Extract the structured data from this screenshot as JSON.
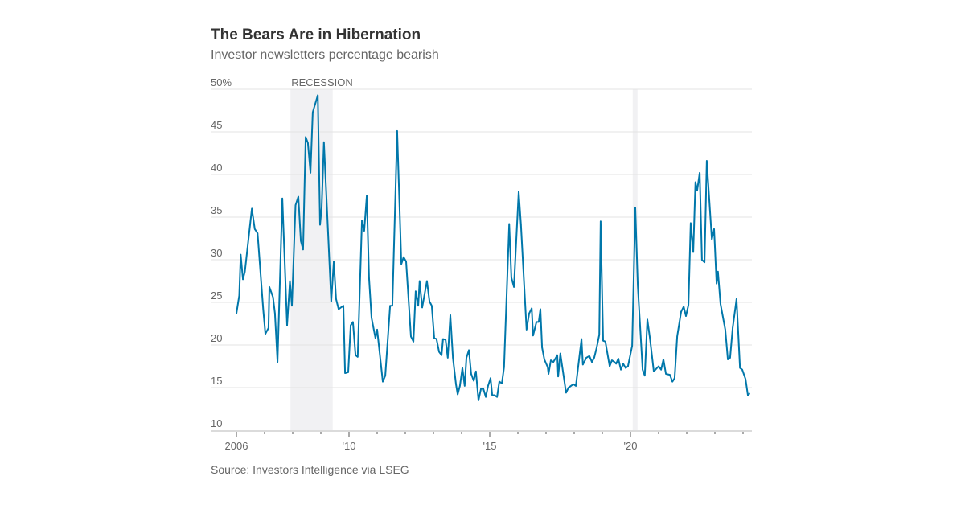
{
  "chart_data": {
    "type": "line",
    "title": "The Bears Are in Hibernation",
    "subtitle": "Investor newsletters percentage bearish",
    "source": "Source: Investors Intelligence via LSEG",
    "ylim": [
      10,
      50
    ],
    "yticks": [
      {
        "value": 10,
        "label": "10"
      },
      {
        "value": 15,
        "label": "15"
      },
      {
        "value": 20,
        "label": "20"
      },
      {
        "value": 25,
        "label": "25"
      },
      {
        "value": 30,
        "label": "30"
      },
      {
        "value": 35,
        "label": "35"
      },
      {
        "value": 40,
        "label": "40"
      },
      {
        "value": 45,
        "label": "45"
      },
      {
        "value": 50,
        "label": "50%"
      }
    ],
    "xlim": [
      2006,
      2024.3
    ],
    "xticks": [
      {
        "value": 2006,
        "label": "2006"
      },
      {
        "value": 2010,
        "label": "'10"
      },
      {
        "value": 2015,
        "label": "'15"
      },
      {
        "value": 2020,
        "label": "'20"
      }
    ],
    "grid": true,
    "line_color": "#0077aa",
    "recessions": [
      {
        "start": 2007.92,
        "end": 2009.42,
        "label": "RECESSION"
      },
      {
        "start": 2020.08,
        "end": 2020.25,
        "label": ""
      }
    ],
    "series": [
      {
        "points": [
          [
            2006.0,
            23.7
          ],
          [
            2006.1,
            25.8
          ],
          [
            2006.15,
            30.6
          ],
          [
            2006.23,
            27.7
          ],
          [
            2006.3,
            28.6
          ],
          [
            2006.55,
            36.0
          ],
          [
            2006.65,
            33.6
          ],
          [
            2006.75,
            33.1
          ],
          [
            2006.95,
            24.2
          ],
          [
            2007.03,
            21.3
          ],
          [
            2007.14,
            22.0
          ],
          [
            2007.17,
            26.8
          ],
          [
            2007.3,
            25.6
          ],
          [
            2007.37,
            23.7
          ],
          [
            2007.46,
            18.0
          ],
          [
            2007.63,
            37.2
          ],
          [
            2007.8,
            22.3
          ],
          [
            2007.9,
            27.5
          ],
          [
            2007.97,
            24.6
          ],
          [
            2008.1,
            36.4
          ],
          [
            2008.2,
            37.4
          ],
          [
            2008.29,
            32.2
          ],
          [
            2008.37,
            31.2
          ],
          [
            2008.46,
            44.4
          ],
          [
            2008.54,
            43.7
          ],
          [
            2008.63,
            40.2
          ],
          [
            2008.71,
            47.3
          ],
          [
            2008.89,
            49.3
          ],
          [
            2008.97,
            34.1
          ],
          [
            2009.03,
            36.1
          ],
          [
            2009.11,
            43.8
          ],
          [
            2009.37,
            25.1
          ],
          [
            2009.46,
            29.8
          ],
          [
            2009.54,
            25.4
          ],
          [
            2009.63,
            24.2
          ],
          [
            2009.8,
            24.6
          ],
          [
            2009.86,
            16.7
          ],
          [
            2009.97,
            16.8
          ],
          [
            2010.06,
            22.3
          ],
          [
            2010.14,
            22.7
          ],
          [
            2010.23,
            18.8
          ],
          [
            2010.31,
            18.6
          ],
          [
            2010.46,
            34.6
          ],
          [
            2010.54,
            33.4
          ],
          [
            2010.63,
            37.5
          ],
          [
            2010.71,
            27.9
          ],
          [
            2010.8,
            23.2
          ],
          [
            2010.94,
            20.8
          ],
          [
            2011.0,
            21.8
          ],
          [
            2011.2,
            15.7
          ],
          [
            2011.29,
            16.4
          ],
          [
            2011.46,
            24.6
          ],
          [
            2011.54,
            24.6
          ],
          [
            2011.71,
            45.1
          ],
          [
            2011.86,
            29.5
          ],
          [
            2011.94,
            30.3
          ],
          [
            2012.03,
            29.8
          ],
          [
            2012.2,
            21.0
          ],
          [
            2012.29,
            20.4
          ],
          [
            2012.37,
            26.3
          ],
          [
            2012.46,
            24.6
          ],
          [
            2012.51,
            27.5
          ],
          [
            2012.6,
            24.4
          ],
          [
            2012.77,
            27.5
          ],
          [
            2012.86,
            25.1
          ],
          [
            2012.94,
            24.6
          ],
          [
            2013.03,
            20.8
          ],
          [
            2013.11,
            20.7
          ],
          [
            2013.2,
            19.2
          ],
          [
            2013.29,
            18.8
          ],
          [
            2013.34,
            20.7
          ],
          [
            2013.43,
            20.6
          ],
          [
            2013.51,
            18.5
          ],
          [
            2013.6,
            23.5
          ],
          [
            2013.69,
            18.5
          ],
          [
            2013.8,
            15.4
          ],
          [
            2013.86,
            14.2
          ],
          [
            2013.94,
            15.2
          ],
          [
            2014.03,
            17.3
          ],
          [
            2014.11,
            15.2
          ],
          [
            2014.17,
            18.5
          ],
          [
            2014.26,
            19.4
          ],
          [
            2014.34,
            16.6
          ],
          [
            2014.43,
            15.8
          ],
          [
            2014.51,
            16.9
          ],
          [
            2014.6,
            13.5
          ],
          [
            2014.69,
            14.9
          ],
          [
            2014.77,
            14.9
          ],
          [
            2014.86,
            13.9
          ],
          [
            2014.94,
            15.2
          ],
          [
            2015.03,
            16.1
          ],
          [
            2015.09,
            14.1
          ],
          [
            2015.17,
            14.1
          ],
          [
            2015.26,
            13.9
          ],
          [
            2015.34,
            15.7
          ],
          [
            2015.43,
            15.5
          ],
          [
            2015.51,
            17.4
          ],
          [
            2015.69,
            34.2
          ],
          [
            2015.77,
            27.9
          ],
          [
            2015.86,
            26.8
          ],
          [
            2016.03,
            38.0
          ],
          [
            2016.11,
            34.1
          ],
          [
            2016.31,
            21.8
          ],
          [
            2016.4,
            23.7
          ],
          [
            2016.49,
            24.3
          ],
          [
            2016.54,
            21.1
          ],
          [
            2016.66,
            22.7
          ],
          [
            2016.74,
            22.7
          ],
          [
            2016.8,
            24.2
          ],
          [
            2016.86,
            19.7
          ],
          [
            2016.94,
            18.3
          ],
          [
            2017.06,
            17.4
          ],
          [
            2017.09,
            16.6
          ],
          [
            2017.17,
            18.2
          ],
          [
            2017.26,
            18.0
          ],
          [
            2017.4,
            18.8
          ],
          [
            2017.43,
            16.3
          ],
          [
            2017.51,
            19.0
          ],
          [
            2017.71,
            14.4
          ],
          [
            2017.8,
            15.0
          ],
          [
            2017.97,
            15.4
          ],
          [
            2018.06,
            15.2
          ],
          [
            2018.26,
            20.7
          ],
          [
            2018.31,
            17.7
          ],
          [
            2018.43,
            18.5
          ],
          [
            2018.54,
            18.7
          ],
          [
            2018.63,
            18.0
          ],
          [
            2018.71,
            18.5
          ],
          [
            2018.8,
            19.7
          ],
          [
            2018.89,
            21.2
          ],
          [
            2018.94,
            34.5
          ],
          [
            2019.03,
            20.5
          ],
          [
            2019.11,
            20.4
          ],
          [
            2019.26,
            17.5
          ],
          [
            2019.34,
            18.2
          ],
          [
            2019.43,
            18.0
          ],
          [
            2019.49,
            17.8
          ],
          [
            2019.57,
            18.4
          ],
          [
            2019.66,
            17.1
          ],
          [
            2019.74,
            17.8
          ],
          [
            2019.83,
            17.3
          ],
          [
            2019.91,
            17.5
          ],
          [
            2020.06,
            19.9
          ],
          [
            2020.17,
            36.1
          ],
          [
            2020.26,
            27.0
          ],
          [
            2020.43,
            17.1
          ],
          [
            2020.51,
            16.4
          ],
          [
            2020.6,
            23.0
          ],
          [
            2020.69,
            20.8
          ],
          [
            2020.83,
            16.9
          ],
          [
            2021.0,
            17.5
          ],
          [
            2021.09,
            17.1
          ],
          [
            2021.17,
            18.3
          ],
          [
            2021.26,
            16.6
          ],
          [
            2021.4,
            16.5
          ],
          [
            2021.49,
            15.7
          ],
          [
            2021.57,
            16.1
          ],
          [
            2021.66,
            21.0
          ],
          [
            2021.8,
            23.9
          ],
          [
            2021.89,
            24.5
          ],
          [
            2021.97,
            23.4
          ],
          [
            2022.06,
            24.7
          ],
          [
            2022.14,
            34.3
          ],
          [
            2022.23,
            30.9
          ],
          [
            2022.31,
            39.1
          ],
          [
            2022.37,
            38.1
          ],
          [
            2022.46,
            40.2
          ],
          [
            2022.54,
            30.0
          ],
          [
            2022.63,
            29.7
          ],
          [
            2022.71,
            41.6
          ],
          [
            2022.89,
            32.4
          ],
          [
            2022.97,
            33.6
          ],
          [
            2023.06,
            27.2
          ],
          [
            2023.11,
            28.6
          ],
          [
            2023.2,
            24.8
          ],
          [
            2023.37,
            21.8
          ],
          [
            2023.46,
            18.3
          ],
          [
            2023.54,
            18.5
          ],
          [
            2023.63,
            22.0
          ],
          [
            2023.77,
            25.4
          ],
          [
            2023.89,
            17.3
          ],
          [
            2023.97,
            17.1
          ],
          [
            2024.09,
            16.0
          ],
          [
            2024.17,
            14.1
          ],
          [
            2024.23,
            14.3
          ]
        ]
      }
    ]
  }
}
